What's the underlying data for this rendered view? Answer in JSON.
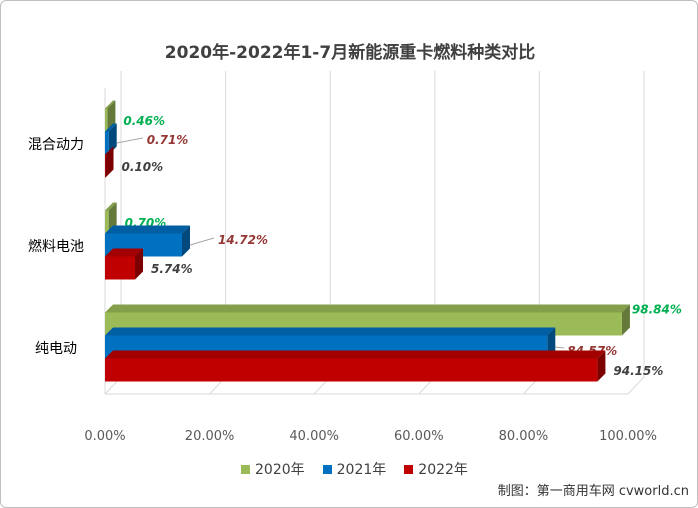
{
  "chart_data": {
    "type": "bar",
    "orientation": "horizontal",
    "title": "2020年-2022年1-7月新能源重卡燃料种类对比",
    "categories": [
      "混合动力",
      "燃料电池",
      "纯电动"
    ],
    "series": [
      {
        "name": "2020年",
        "color": "#9bbb59",
        "values": [
          0.46,
          0.7,
          98.84
        ],
        "labels": [
          "0.46%",
          "0.70%",
          "98.84%"
        ],
        "label_color": "#00b050"
      },
      {
        "name": "2021年",
        "color": "#0070c0",
        "values": [
          0.71,
          14.72,
          84.57
        ],
        "labels": [
          "0.71%",
          "14.72%",
          "84.57%"
        ],
        "label_color": "#953735"
      },
      {
        "name": "2022年",
        "color": "#c00000",
        "values": [
          0.1,
          5.74,
          94.15
        ],
        "labels": [
          "0.10%",
          "5.74%",
          "94.15%"
        ],
        "label_color": "#404040"
      }
    ],
    "xlim": [
      0,
      100
    ],
    "xticks": [
      "0.00%",
      "20.00%",
      "40.00%",
      "60.00%",
      "80.00%",
      "100.00%"
    ],
    "grid": true,
    "legend": "bottom",
    "style": "3d"
  },
  "credit": "制图：第一商用车网 cvworld.cn"
}
